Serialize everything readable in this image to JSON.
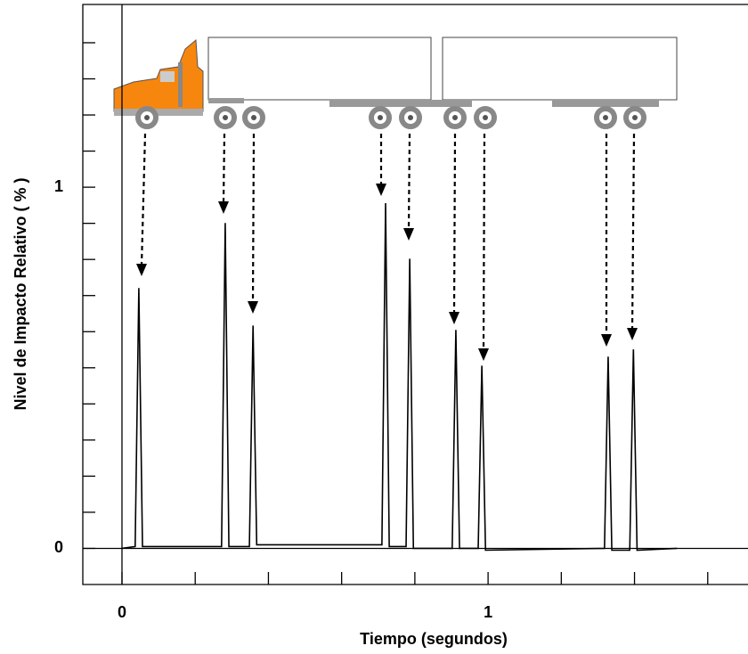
{
  "chart_data": {
    "type": "line",
    "xlabel": "Tiempo (segundos)",
    "ylabel": "Nivel de Impacto Relativo ( % )",
    "x": [
      0,
      0.036,
      0.046,
      0.056,
      0.272,
      0.282,
      0.292,
      0.348,
      0.358,
      0.368,
      0.71,
      0.72,
      0.73,
      0.776,
      0.786,
      0.796,
      0.902,
      0.912,
      0.922,
      0.973,
      0.983,
      0.993,
      1.318,
      1.328,
      1.338,
      1.387,
      1.397,
      1.407,
      1.516
    ],
    "values": [
      0,
      0.005,
      0.721,
      0.005,
      0.005,
      0.901,
      0.005,
      0.005,
      0.617,
      0.01,
      0.01,
      0.956,
      0.005,
      0.005,
      0.802,
      0,
      0,
      0.605,
      0,
      0,
      0.506,
      -0.005,
      0,
      0.531,
      -0.005,
      -0.005,
      0.551,
      -0.005,
      0
    ],
    "color": "#000000",
    "xlim": [
      -0.107,
      1.71
    ],
    "ylim": [
      -0.1,
      1.506
    ],
    "xticks": [
      0,
      1
    ],
    "yticks": [
      0,
      1
    ],
    "xminorticks": [
      0.2,
      0.4,
      0.6,
      0.8,
      1.2,
      1.4,
      1.6
    ],
    "yminorticks": [
      0.1,
      0.2,
      0.3,
      0.4,
      0.5,
      0.6,
      0.7,
      0.8,
      0.9,
      1.1,
      1.2,
      1.3,
      1.4
    ]
  }
}
